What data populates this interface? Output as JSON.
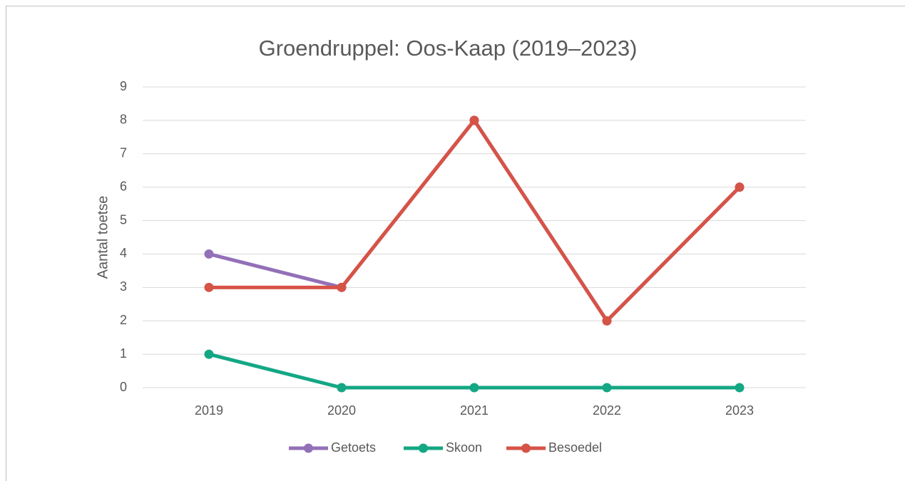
{
  "chart_data": {
    "type": "line",
    "title": "Groendruppel: Oos-Kaap (2019–2023)",
    "y_label": "Aantal toetse",
    "categories": [
      "2019",
      "2020",
      "2021",
      "2022",
      "2023"
    ],
    "series": [
      {
        "name": "Getoets",
        "color": "#9370b8",
        "values": [
          4,
          3,
          8,
          2,
          6
        ]
      },
      {
        "name": "Skoon",
        "color": "#14a784",
        "values": [
          1,
          0,
          0,
          0,
          0
        ]
      },
      {
        "name": "Besoedel",
        "color": "#d65347",
        "values": [
          3,
          3,
          8,
          2,
          6
        ]
      }
    ],
    "ylim": [
      0,
      9
    ],
    "yticks": [
      0,
      1,
      2,
      3,
      4,
      5,
      6,
      7,
      8,
      9
    ],
    "grid": true,
    "legend": "bottom"
  }
}
